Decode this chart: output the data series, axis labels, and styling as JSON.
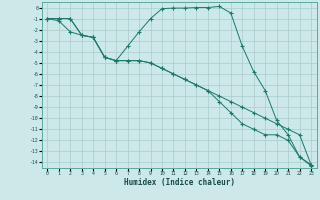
{
  "xlabel": "Humidex (Indice chaleur)",
  "bg_color": "#cce8e8",
  "grid_color": "#aacccc",
  "line_color": "#1a7a6a",
  "xlim": [
    -0.5,
    23.5
  ],
  "ylim": [
    -14.5,
    0.5
  ],
  "xticks": [
    0,
    1,
    2,
    3,
    4,
    5,
    6,
    7,
    8,
    9,
    10,
    11,
    12,
    13,
    14,
    15,
    16,
    17,
    18,
    19,
    20,
    21,
    22,
    23
  ],
  "yticks": [
    0,
    -1,
    -2,
    -3,
    -4,
    -5,
    -6,
    -7,
    -8,
    -9,
    -10,
    -11,
    -12,
    -13,
    -14
  ],
  "series1_x": [
    0,
    1,
    2,
    3,
    4,
    5,
    6,
    7,
    8,
    9,
    10,
    11,
    12,
    13,
    14,
    15,
    16,
    17,
    18,
    19,
    20,
    21,
    22,
    23
  ],
  "series1_y": [
    -1,
    -1.2,
    -2.2,
    -2.5,
    -2.7,
    -4.5,
    -4.8,
    -3.5,
    -2.2,
    -1.0,
    -0.1,
    -0.05,
    -0.05,
    0.0,
    0.0,
    0.1,
    -0.5,
    -3.5,
    -5.8,
    -7.5,
    -10.2,
    -11.5,
    -13.5,
    -14.3
  ],
  "series2_x": [
    0,
    1,
    2,
    3,
    4,
    5,
    6,
    7,
    8,
    9,
    10,
    11,
    12,
    13,
    14,
    15,
    16,
    17,
    18,
    19,
    20,
    21,
    22,
    23
  ],
  "series2_y": [
    -1,
    -1,
    -1,
    -2.5,
    -2.7,
    -4.5,
    -4.8,
    -4.8,
    -4.8,
    -5.0,
    -5.5,
    -6.0,
    -6.5,
    -7.0,
    -7.5,
    -8.0,
    -8.5,
    -9.0,
    -9.5,
    -10.0,
    -10.5,
    -11.0,
    -11.5,
    -14.2
  ],
  "series3_x": [
    0,
    1,
    2,
    3,
    4,
    5,
    6,
    7,
    8,
    9,
    10,
    11,
    12,
    13,
    14,
    15,
    16,
    17,
    18,
    19,
    20,
    21,
    22,
    23
  ],
  "series3_y": [
    -1,
    -1,
    -1,
    -2.5,
    -2.7,
    -4.5,
    -4.8,
    -4.8,
    -4.8,
    -5.0,
    -5.5,
    -6.0,
    -6.5,
    -7.0,
    -7.5,
    -8.5,
    -9.5,
    -10.5,
    -11.0,
    -11.5,
    -11.5,
    -12.0,
    -13.5,
    -14.2
  ]
}
